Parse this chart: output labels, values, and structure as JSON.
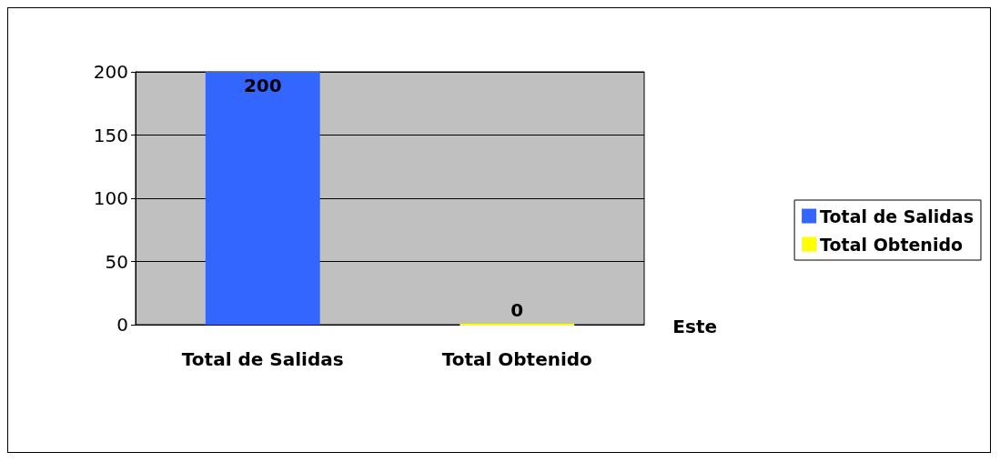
{
  "chart_data": {
    "type": "bar",
    "categories": [
      "Total de Salidas",
      "Total Obtenido"
    ],
    "series": [
      {
        "name": "Total de Salidas",
        "color": "#3366ff",
        "values": [
          200,
          null
        ]
      },
      {
        "name": "Total Obtenido",
        "color": "#ffff00",
        "values": [
          null,
          0
        ]
      }
    ],
    "ylim": [
      0,
      200
    ],
    "yticks": [
      0,
      50,
      100,
      150,
      200
    ],
    "grid": "y",
    "legend": "right",
    "data_labels": true,
    "annotations": [
      "Este"
    ]
  }
}
